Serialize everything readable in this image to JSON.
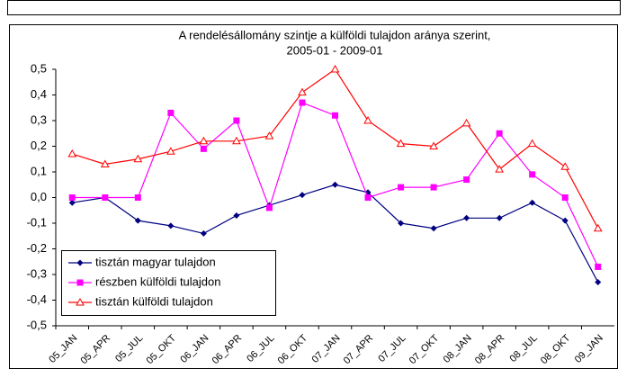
{
  "chart_data": {
    "type": "line",
    "title": [
      "A rendelésállomány szintje a külföldi tulajdon aránya szerint,",
      "2005-01 - 2009-01"
    ],
    "categories": [
      "05_JAN",
      "05_APR",
      "05_JUL",
      "05_OKT",
      "06_JAN",
      "06_APR",
      "06_JUL",
      "06_OKT",
      "07_JAN",
      "07_APR",
      "07_JUL",
      "07_OKT",
      "08_JAN",
      "08_APR",
      "08_JUL",
      "08_OKT",
      "09_JAN"
    ],
    "series": [
      {
        "name": "tisztán magyar tulajdon",
        "color": "#000080",
        "marker": "diamond",
        "values": [
          -0.02,
          0.0,
          -0.09,
          -0.11,
          -0.14,
          -0.07,
          -0.03,
          0.01,
          0.05,
          0.02,
          -0.1,
          -0.12,
          -0.08,
          -0.08,
          -0.02,
          -0.09,
          -0.33
        ]
      },
      {
        "name": "részben külföldi tulajdon",
        "color": "#ff00ff",
        "marker": "square",
        "values": [
          0.0,
          0.0,
          0.0,
          0.33,
          0.19,
          0.3,
          -0.04,
          0.37,
          0.32,
          0.0,
          0.04,
          0.04,
          0.07,
          0.25,
          0.09,
          0.0,
          -0.27
        ]
      },
      {
        "name": "tisztán külföldi tulajdon",
        "color": "#ff0000",
        "marker": "triangle",
        "values": [
          0.17,
          0.13,
          0.15,
          0.18,
          0.22,
          0.22,
          0.24,
          0.41,
          0.5,
          0.3,
          0.21,
          0.2,
          0.29,
          0.11,
          0.21,
          0.12,
          -0.12
        ]
      }
    ],
    "ylim": [
      -0.5,
      0.5
    ],
    "yticks": [
      {
        "value": -0.5,
        "label": "-0,5"
      },
      {
        "value": -0.4,
        "label": "-0,4"
      },
      {
        "value": -0.3,
        "label": "-0,3"
      },
      {
        "value": -0.2,
        "label": "-0,2"
      },
      {
        "value": -0.1,
        "label": "-0,1"
      },
      {
        "value": 0,
        "label": "0,0"
      },
      {
        "value": 0.1,
        "label": "0,1"
      },
      {
        "value": 0.2,
        "label": "0,2"
      },
      {
        "value": 0.3,
        "label": "0,3"
      },
      {
        "value": 0.4,
        "label": "0,4"
      },
      {
        "value": 0.5,
        "label": "0,5"
      }
    ],
    "grid": false,
    "legend": "lower left"
  }
}
